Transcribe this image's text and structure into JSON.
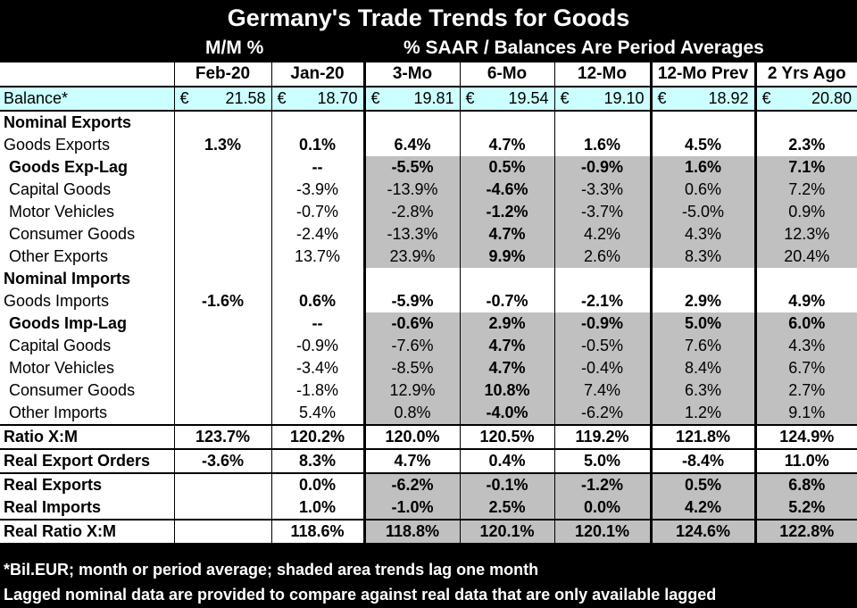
{
  "title": "Germany's Trade Trends for Goods",
  "subtitle_mm": "M/M %",
  "subtitle_saar": "% SAAR / Balances Are Period Averages",
  "columns": [
    "Feb-20",
    "Jan-20",
    "3-Mo",
    "6-Mo",
    "12-Mo",
    "12-Mo Prev",
    "2 Yrs Ago"
  ],
  "balance": {
    "label": "Balance*",
    "currency": "€",
    "values": [
      "21.58",
      "18.70",
      "19.81",
      "19.54",
      "19.10",
      "18.92",
      "20.80"
    ]
  },
  "rows": [
    {
      "label": "Nominal Exports",
      "values": [
        "",
        "",
        "",
        "",
        "",
        "",
        ""
      ]
    },
    {
      "label": "Goods Exports",
      "values": [
        "1.3%",
        "0.1%",
        "6.4%",
        "4.7%",
        "1.6%",
        "4.5%",
        "2.3%"
      ]
    },
    {
      "label": "Goods Exp-Lag",
      "values": [
        "",
        "--",
        "-5.5%",
        "0.5%",
        "-0.9%",
        "1.6%",
        "7.1%"
      ]
    },
    {
      "label": "Capital Goods",
      "values": [
        "",
        "-3.9%",
        "-13.9%",
        "-4.6%",
        "-3.3%",
        "0.6%",
        "7.2%"
      ]
    },
    {
      "label": "Motor Vehicles",
      "values": [
        "",
        "-0.7%",
        "-2.8%",
        "-1.2%",
        "-3.7%",
        "-5.0%",
        "0.9%"
      ]
    },
    {
      "label": "Consumer Goods",
      "values": [
        "",
        "-2.4%",
        "-13.3%",
        "4.7%",
        "4.2%",
        "4.3%",
        "12.3%"
      ]
    },
    {
      "label": "Other Exports",
      "values": [
        "",
        "13.7%",
        "23.9%",
        "9.9%",
        "2.6%",
        "8.3%",
        "20.4%"
      ]
    },
    {
      "label": "Nominal Imports",
      "values": [
        "",
        "",
        "",
        "",
        "",
        "",
        ""
      ]
    },
    {
      "label": "Goods Imports",
      "values": [
        "-1.6%",
        "0.6%",
        "-5.9%",
        "-0.7%",
        "-2.1%",
        "2.9%",
        "4.9%"
      ]
    },
    {
      "label": "Goods Imp-Lag",
      "values": [
        "",
        "--",
        "-0.6%",
        "2.9%",
        "-0.9%",
        "5.0%",
        "6.0%"
      ]
    },
    {
      "label": "Capital Goods",
      "values": [
        "",
        "-0.9%",
        "-7.6%",
        "4.7%",
        "-0.5%",
        "7.6%",
        "4.3%"
      ]
    },
    {
      "label": "Motor Vehicles",
      "values": [
        "",
        "-3.4%",
        "-8.5%",
        "4.7%",
        "-0.4%",
        "8.4%",
        "6.7%"
      ]
    },
    {
      "label": "Consumer Goods",
      "values": [
        "",
        "-1.8%",
        "12.9%",
        "10.8%",
        "7.4%",
        "6.3%",
        "2.7%"
      ]
    },
    {
      "label": "Other Imports",
      "values": [
        "",
        "5.4%",
        "0.8%",
        "-4.0%",
        "-6.2%",
        "1.2%",
        "9.1%"
      ]
    },
    {
      "label": "Ratio X:M",
      "values": [
        "123.7%",
        "120.2%",
        "120.0%",
        "120.5%",
        "119.2%",
        "121.8%",
        "124.9%"
      ]
    },
    {
      "label": "Real Export Orders",
      "values": [
        "-3.6%",
        "8.3%",
        "4.7%",
        "0.4%",
        "5.0%",
        "-8.4%",
        "11.0%"
      ]
    },
    {
      "label": "Real Exports",
      "values": [
        "",
        "0.0%",
        "-6.2%",
        "-0.1%",
        "-1.2%",
        "0.5%",
        "6.8%"
      ]
    },
    {
      "label": "Real Imports",
      "values": [
        "",
        "1.0%",
        "-1.0%",
        "2.5%",
        "0.0%",
        "4.2%",
        "5.2%"
      ]
    },
    {
      "label": "Real Ratio X:M",
      "values": [
        "",
        "118.6%",
        "118.8%",
        "120.1%",
        "120.1%",
        "124.6%",
        "122.8%"
      ]
    }
  ],
  "footnote1": "*Bil.EUR; month or period average; shaded area trends lag one month",
  "footnote2": "Lagged nominal data are provided to compare against real data that are only available lagged",
  "colors": {
    "shade": "#c0c0c0",
    "balance_bg": "#ccffff",
    "background": "#000000"
  }
}
